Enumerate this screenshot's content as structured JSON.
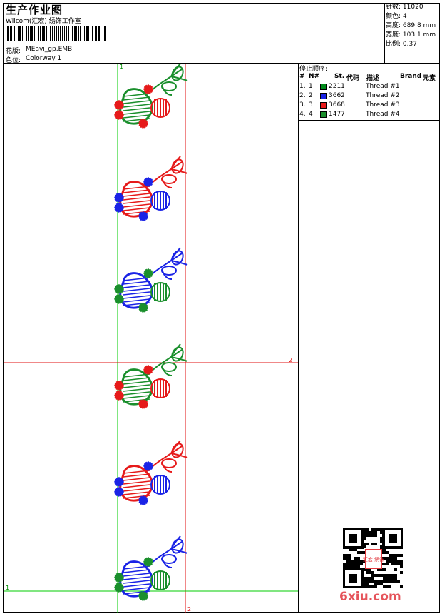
{
  "header": {
    "title": "生产作业图",
    "company": "Wilcom(汇宏) 绣饰工作室",
    "design_label": "花版:",
    "design_value": "MEavi_gp.EMB",
    "color_label": "色位:",
    "color_value": "Colorway 1"
  },
  "stats": {
    "stitches": {
      "label": "针数:",
      "value": "11020"
    },
    "colors": {
      "label": "颜色:",
      "value": "4"
    },
    "height": {
      "label": "高度:",
      "value": "689.8 mm"
    },
    "width": {
      "label": "宽度:",
      "value": "103.1 mm"
    },
    "scale": {
      "label": "比例:",
      "value": "0.37"
    }
  },
  "stops": {
    "heading": "停止顺序:",
    "columns": [
      "#",
      "N#",
      "St.",
      "代码",
      "描述",
      "Brand",
      "元素"
    ],
    "rows": [
      {
        "index": "1.",
        "needle": "1",
        "code": "2211",
        "desc": "Thread #1",
        "color": "#008a1a"
      },
      {
        "index": "2.",
        "needle": "2",
        "code": "3662",
        "desc": "Thread #2",
        "color": "#1a23e6"
      },
      {
        "index": "3.",
        "needle": "3",
        "code": "3668",
        "desc": "Thread #3",
        "color": "#e61a1a"
      },
      {
        "index": "4.",
        "needle": "4",
        "code": "1477",
        "desc": "Thread #4",
        "color": "#1a8f2c"
      }
    ]
  },
  "guides": {
    "v1_label": "1",
    "h2_label": "2",
    "h1_label": "1",
    "v2_label": "2"
  },
  "motifs": [
    {
      "body": "#1a8f2c",
      "ball": "#e61a1a",
      "flowers": "#e61a1a",
      "stem": "#1a8f2c"
    },
    {
      "body": "#e61a1a",
      "ball": "#1a23e6",
      "flowers": "#1a23e6",
      "stem": "#e61a1a"
    },
    {
      "body": "#1a23e6",
      "ball": "#1a8f2c",
      "flowers": "#1a8f2c",
      "stem": "#1a23e6"
    },
    {
      "body": "#1a8f2c",
      "ball": "#e61a1a",
      "flowers": "#e61a1a",
      "stem": "#1a8f2c"
    },
    {
      "body": "#e61a1a",
      "ball": "#1a23e6",
      "flowers": "#1a23e6",
      "stem": "#e61a1a"
    },
    {
      "body": "#1a23e6",
      "ball": "#1a8f2c",
      "flowers": "#1a8f2c",
      "stem": "#1a23e6"
    }
  ],
  "watermark": {
    "text": "6xiu.com",
    "seal_text": "汇宏 绣饰"
  }
}
